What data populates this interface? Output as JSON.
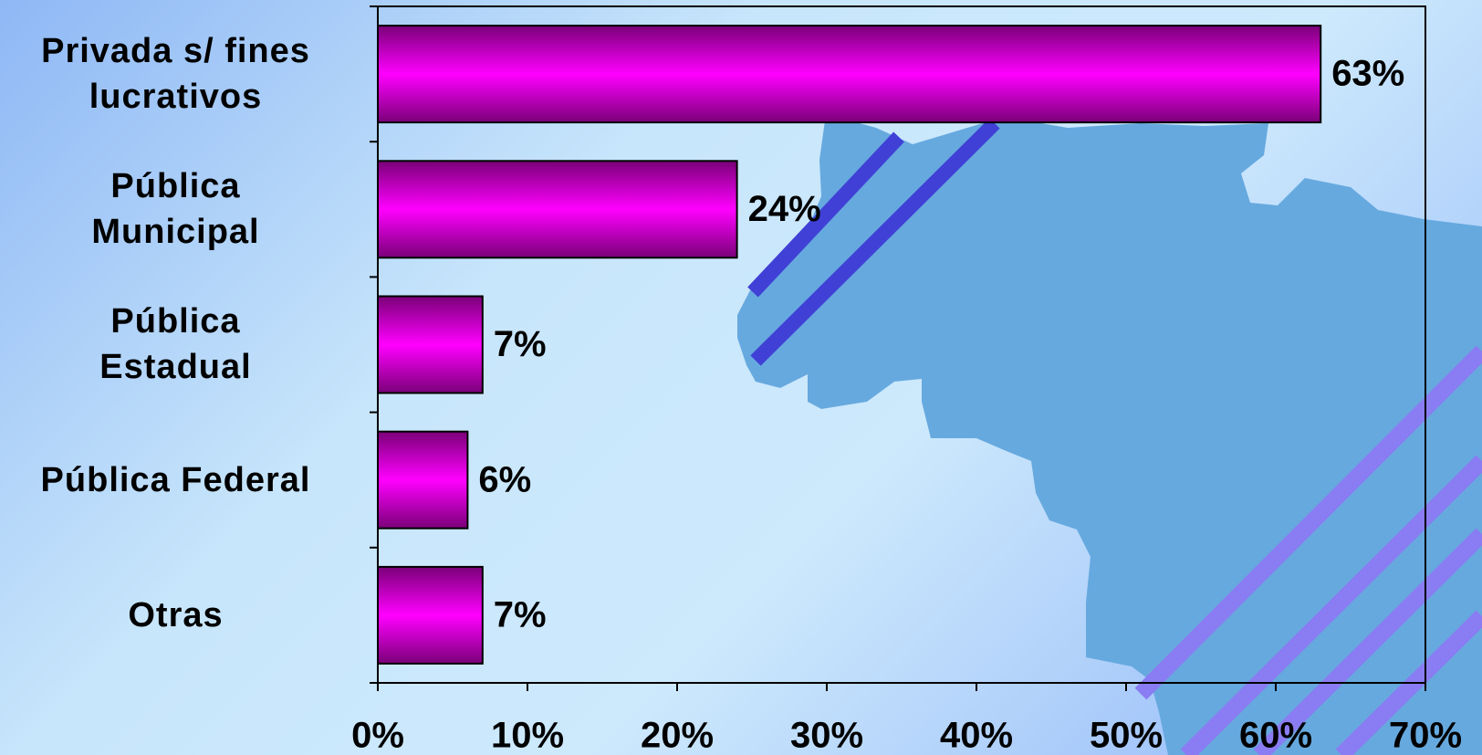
{
  "chart_data": {
    "type": "hbar",
    "categories": [
      "Privada s/ fines\nlucrativos",
      "Pública\nMunicipal",
      "Pública\nEstadual",
      "Pública Federal",
      "Otras"
    ],
    "values": [
      63,
      24,
      7,
      6,
      7
    ],
    "value_labels": [
      "63%",
      "24%",
      "7%",
      "6%",
      "7%"
    ],
    "color": "#ff00ff",
    "xlim": [
      0,
      70
    ],
    "xticks": [
      {
        "value": 0,
        "label": "0%"
      },
      {
        "value": 10,
        "label": "10%"
      },
      {
        "value": 20,
        "label": "20%"
      },
      {
        "value": 30,
        "label": "30%"
      },
      {
        "value": 40,
        "label": "40%"
      },
      {
        "value": 50,
        "label": "50%"
      },
      {
        "value": 60,
        "label": "60%"
      },
      {
        "value": 70,
        "label": "70%"
      }
    ],
    "grid": false
  }
}
